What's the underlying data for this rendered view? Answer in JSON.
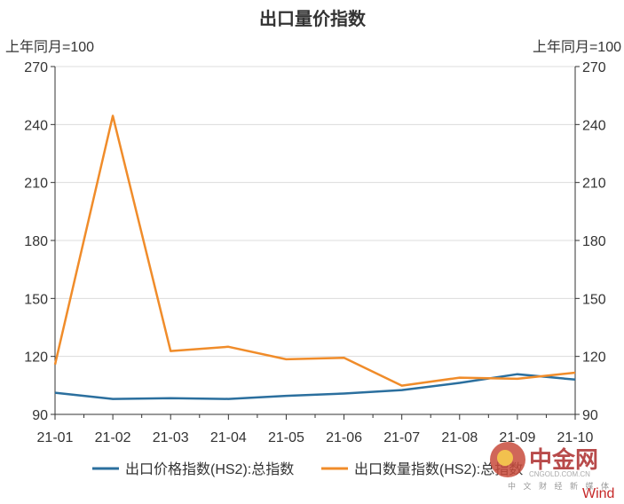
{
  "chart_data": {
    "type": "line",
    "title": "出口量价指数",
    "left_unit": "上年同月=100",
    "right_unit": "上年同月=100",
    "x": [
      "21-01",
      "21-02",
      "21-03",
      "21-04",
      "21-05",
      "21-06",
      "21-07",
      "21-08",
      "21-09",
      "21-10"
    ],
    "ylim": [
      90,
      270
    ],
    "yticks": [
      90,
      120,
      150,
      180,
      210,
      240,
      270
    ],
    "grid": true,
    "legend_position": "bottom",
    "series": [
      {
        "name": "出口价格指数(HS2):总指数",
        "color": "#2b6f9e",
        "values": [
          101.2,
          98.0,
          98.4,
          98.0,
          99.6,
          100.8,
          102.6,
          106.3,
          110.8,
          108.0
        ]
      },
      {
        "name": "出口数量指数(HS2):总指数",
        "color": "#f08c2a",
        "values": [
          115.8,
          244.5,
          122.8,
          125.0,
          118.5,
          119.3,
          104.9,
          109.0,
          108.4,
          111.6
        ]
      }
    ]
  },
  "watermark": {
    "logo": "中金网",
    "site": "CNGOLD.COM.CN",
    "tagline": "中 文 财 经 新 媒 体",
    "source": "Wind"
  }
}
